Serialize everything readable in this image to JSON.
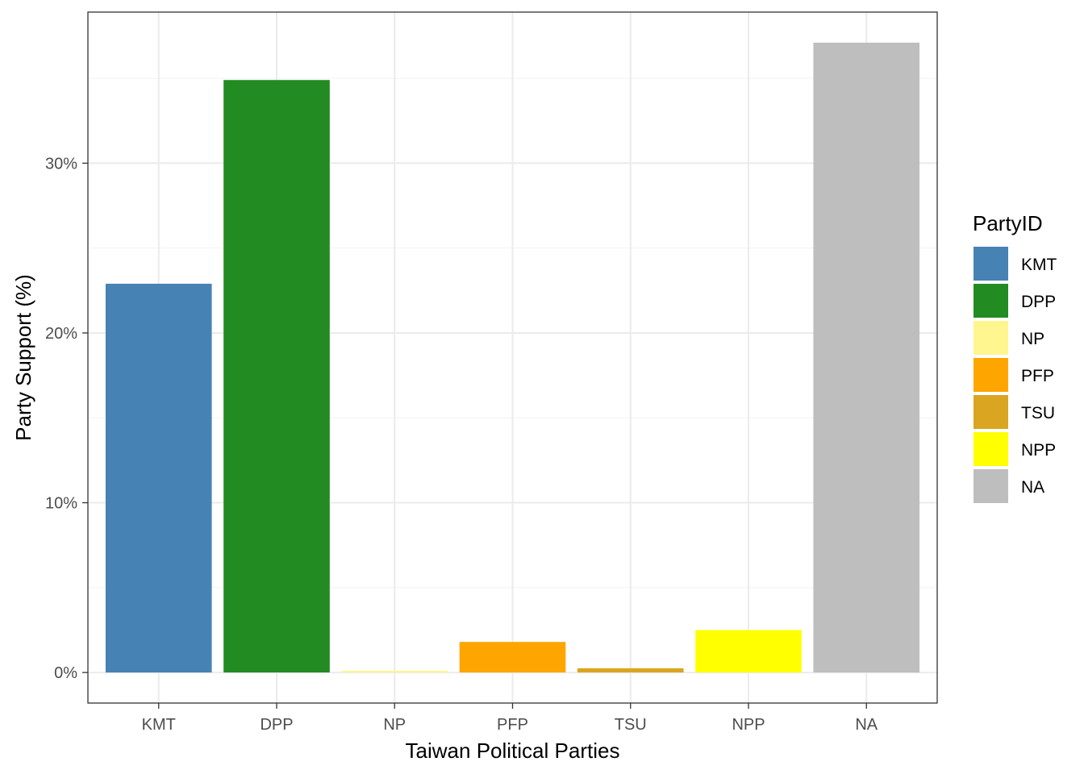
{
  "chart_data": {
    "type": "bar",
    "xlabel": "Taiwan Political Parties",
    "ylabel": "Party Support (%)",
    "categories": [
      "KMT",
      "DPP",
      "NP",
      "PFP",
      "TSU",
      "NPP",
      "NA"
    ],
    "values": [
      22.9,
      34.9,
      0.1,
      1.8,
      0.25,
      2.5,
      37.1
    ],
    "colors": [
      "#4682B4",
      "#228B22",
      "#FFF68F",
      "#FFA500",
      "#DAA520",
      "#FFFF00",
      "#BEBEBE"
    ],
    "ylim": [
      -1.8,
      38.9
    ],
    "y_ticks": [
      0,
      10,
      20,
      30
    ],
    "y_tick_labels": [
      "0%",
      "10%",
      "20%",
      "30%"
    ],
    "grid": true,
    "legend": {
      "title": "PartyID",
      "position": "right",
      "items": [
        "KMT",
        "DPP",
        "NP",
        "PFP",
        "TSU",
        "NPP",
        "NA"
      ]
    }
  }
}
